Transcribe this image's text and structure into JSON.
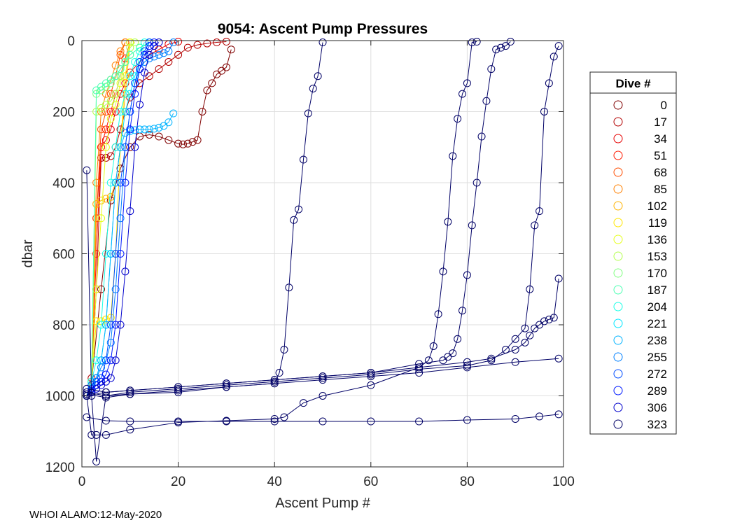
{
  "chart_data": {
    "type": "scatter",
    "title": "9054: Ascent Pump Pressures",
    "xlabel": "Ascent Pump #",
    "ylabel": "dbar",
    "xlim": [
      0,
      100
    ],
    "ylim": [
      1200,
      0
    ],
    "y_reversed": true,
    "xticks": [
      0,
      20,
      40,
      60,
      80,
      100
    ],
    "yticks": [
      0,
      200,
      400,
      600,
      800,
      1000,
      1200
    ],
    "grid": true,
    "marker": "open-circle",
    "legend": {
      "title": "Dive #",
      "placement": "right-outside",
      "entries": [
        {
          "label": "0",
          "color": "#800000"
        },
        {
          "label": "17",
          "color": "#B30000"
        },
        {
          "label": "34",
          "color": "#E60000"
        },
        {
          "label": "51",
          "color": "#FF1A00"
        },
        {
          "label": "68",
          "color": "#FF4D00"
        },
        {
          "label": "85",
          "color": "#FF8000"
        },
        {
          "label": "102",
          "color": "#FFB300"
        },
        {
          "label": "119",
          "color": "#FFE600"
        },
        {
          "label": "136",
          "color": "#E6FF1A"
        },
        {
          "label": "153",
          "color": "#B3FF4D"
        },
        {
          "label": "170",
          "color": "#80FF80"
        },
        {
          "label": "187",
          "color": "#4DFFB3"
        },
        {
          "label": "204",
          "color": "#1AFFE6"
        },
        {
          "label": "221",
          "color": "#00E6FF"
        },
        {
          "label": "238",
          "color": "#00B3FF"
        },
        {
          "label": "255",
          "color": "#0080FF"
        },
        {
          "label": "272",
          "color": "#004DFF"
        },
        {
          "label": "289",
          "color": "#001AFF"
        },
        {
          "label": "306",
          "color": "#0000CC"
        },
        {
          "label": "323",
          "color": "#000066"
        }
      ]
    },
    "series": [
      {
        "name": "0",
        "color": "#800000",
        "x": [
          1,
          2,
          4,
          6,
          8,
          10,
          12,
          14,
          16,
          18,
          20,
          21,
          22,
          23,
          24,
          25,
          26,
          27,
          28,
          29,
          30,
          31
        ],
        "y": [
          1000,
          960,
          700,
          450,
          360,
          300,
          270,
          265,
          270,
          280,
          290,
          292,
          290,
          285,
          280,
          200,
          140,
          120,
          95,
          85,
          75,
          25
        ]
      },
      {
        "name": "17",
        "color": "#B30000",
        "x": [
          1,
          2,
          3,
          4,
          5,
          6,
          7,
          8,
          9,
          10,
          12,
          14,
          16,
          18,
          20,
          22,
          24,
          26,
          28,
          30
        ],
        "y": [
          1000,
          950,
          700,
          330,
          330,
          325,
          300,
          250,
          200,
          160,
          120,
          100,
          80,
          60,
          40,
          20,
          12,
          8,
          5,
          3
        ]
      },
      {
        "name": "34",
        "color": "#E60000",
        "x": [
          1,
          2,
          3,
          4,
          5,
          6,
          7,
          8,
          9,
          10,
          12,
          14,
          16,
          18,
          20
        ],
        "y": [
          1000,
          960,
          500,
          300,
          280,
          250,
          200,
          150,
          120,
          90,
          60,
          40,
          25,
          10,
          3
        ]
      },
      {
        "name": "51",
        "color": "#FF1A00",
        "x": [
          1,
          2,
          3,
          4,
          5,
          6,
          7,
          8,
          9,
          10
        ],
        "y": [
          1000,
          960,
          600,
          300,
          250,
          200,
          150,
          100,
          50,
          5
        ]
      },
      {
        "name": "68",
        "color": "#FF4D00",
        "x": [
          1,
          2,
          3,
          4,
          5,
          6,
          7,
          8,
          9
        ],
        "y": [
          1000,
          960,
          500,
          250,
          200,
          150,
          100,
          40,
          5
        ]
      },
      {
        "name": "85",
        "color": "#FF8000",
        "x": [
          1,
          2,
          3,
          4,
          5,
          6,
          7,
          8,
          9
        ],
        "y": [
          1000,
          960,
          400,
          200,
          150,
          110,
          70,
          30,
          5
        ]
      },
      {
        "name": "102",
        "color": "#FFB300",
        "x": [
          1,
          2,
          3,
          4,
          5,
          6,
          7,
          8,
          9,
          10
        ],
        "y": [
          1000,
          960,
          460,
          450,
          445,
          440,
          400,
          300,
          150,
          5
        ]
      },
      {
        "name": "119",
        "color": "#FFE600",
        "x": [
          1,
          2,
          3,
          4,
          5,
          6,
          7,
          8,
          9,
          10
        ],
        "y": [
          1000,
          960,
          790,
          790,
          785,
          780,
          600,
          300,
          100,
          5
        ]
      },
      {
        "name": "136",
        "color": "#E6FF1A",
        "x": [
          1,
          2,
          3,
          4,
          5,
          6,
          7,
          8,
          9,
          10
        ],
        "y": [
          1000,
          960,
          700,
          500,
          300,
          220,
          180,
          120,
          60,
          5
        ]
      },
      {
        "name": "153",
        "color": "#B3FF4D",
        "x": [
          1,
          2,
          3,
          4,
          5,
          6,
          7,
          8,
          9,
          10,
          11
        ],
        "y": [
          1000,
          960,
          200,
          190,
          180,
          170,
          150,
          100,
          60,
          20,
          5
        ]
      },
      {
        "name": "170",
        "color": "#80FF80",
        "x": [
          1,
          2,
          3,
          4,
          5,
          6,
          7,
          8,
          9,
          10,
          12,
          14
        ],
        "y": [
          1000,
          960,
          150,
          140,
          130,
          120,
          100,
          80,
          60,
          40,
          20,
          5
        ]
      },
      {
        "name": "187",
        "color": "#4DFFB3",
        "x": [
          1,
          2,
          3,
          4,
          5,
          6,
          7,
          8,
          9,
          10,
          12,
          14
        ],
        "y": [
          1000,
          960,
          140,
          130,
          120,
          110,
          100,
          80,
          60,
          40,
          20,
          5
        ]
      },
      {
        "name": "204",
        "color": "#1AFFE6",
        "x": [
          1,
          2,
          3,
          4,
          5,
          6,
          7,
          8,
          9,
          10,
          11,
          12,
          13
        ],
        "y": [
          1000,
          960,
          900,
          800,
          600,
          400,
          300,
          200,
          150,
          100,
          60,
          30,
          5
        ]
      },
      {
        "name": "221",
        "color": "#00E6FF",
        "x": [
          1,
          2,
          3,
          4,
          5,
          6,
          7,
          8,
          9,
          10,
          11,
          12,
          13,
          14
        ],
        "y": [
          1000,
          970,
          950,
          900,
          800,
          600,
          400,
          300,
          200,
          150,
          100,
          60,
          30,
          5
        ]
      },
      {
        "name": "238",
        "color": "#00B3FF",
        "x": [
          1,
          2,
          3,
          4,
          5,
          6,
          7,
          8,
          9,
          10,
          11,
          12,
          13,
          14,
          15,
          16,
          17,
          18,
          19
        ],
        "y": [
          1000,
          970,
          950,
          900,
          800,
          600,
          400,
          300,
          260,
          255,
          252,
          250,
          250,
          250,
          248,
          245,
          240,
          230,
          205
        ]
      },
      {
        "name": "255",
        "color": "#0080FF",
        "x": [
          1,
          2,
          3,
          4,
          5,
          6,
          7,
          8,
          9,
          10,
          11,
          12,
          13,
          14,
          15,
          16,
          17,
          18,
          19
        ],
        "y": [
          1000,
          970,
          950,
          920,
          900,
          850,
          700,
          500,
          300,
          200,
          120,
          80,
          60,
          50,
          45,
          40,
          35,
          30,
          5
        ]
      },
      {
        "name": "272",
        "color": "#004DFF",
        "x": [
          1,
          2,
          3,
          4,
          5,
          6,
          7,
          8,
          9,
          10,
          11,
          12,
          13,
          14
        ],
        "y": [
          1000,
          980,
          960,
          950,
          900,
          800,
          600,
          400,
          300,
          200,
          120,
          60,
          30,
          5
        ]
      },
      {
        "name": "289",
        "color": "#001AFF",
        "x": [
          1,
          2,
          3,
          4,
          5,
          6,
          7,
          8,
          9,
          10,
          11,
          12,
          13,
          14,
          15
        ],
        "y": [
          1000,
          985,
          970,
          960,
          940,
          900,
          800,
          600,
          400,
          250,
          150,
          80,
          40,
          15,
          5
        ]
      },
      {
        "name": "306",
        "color": "#0000CC",
        "x": [
          1,
          2,
          3,
          4,
          5,
          6,
          7,
          8,
          9,
          10,
          11,
          12,
          13,
          14,
          15,
          16
        ],
        "y": [
          1000,
          990,
          980,
          970,
          960,
          950,
          900,
          800,
          650,
          480,
          300,
          180,
          90,
          40,
          15,
          5
        ]
      },
      {
        "name": "323",
        "color": "#000066",
        "x": [
          1,
          2,
          3,
          5,
          10,
          20,
          30,
          40,
          41,
          42,
          43,
          44,
          45,
          46,
          47,
          48,
          49,
          50
        ],
        "y": [
          365,
          1000,
          1185,
          1000,
          995,
          985,
          975,
          965,
          935,
          870,
          695,
          505,
          475,
          335,
          205,
          135,
          100,
          5
        ]
      },
      {
        "name": "323",
        "color": "#000066",
        "x": [
          1,
          2,
          3,
          5,
          10,
          20,
          30,
          40,
          42,
          46,
          50,
          60,
          70,
          72,
          73,
          74,
          75,
          76,
          77,
          78,
          79,
          80,
          81,
          82
        ],
        "y": [
          1000,
          1110,
          1110,
          1110,
          1095,
          1075,
          1070,
          1065,
          1060,
          1020,
          1000,
          970,
          920,
          900,
          860,
          770,
          650,
          510,
          325,
          220,
          150,
          120,
          5,
          3
        ]
      },
      {
        "name": "323",
        "color": "#000066",
        "x": [
          1,
          5,
          10,
          20,
          30,
          40,
          50,
          60,
          70,
          75,
          76,
          77,
          78,
          79,
          80,
          81,
          82,
          83,
          84,
          85,
          86,
          87,
          88,
          89
        ],
        "y": [
          980,
          990,
          985,
          975,
          965,
          955,
          945,
          935,
          910,
          900,
          890,
          880,
          840,
          760,
          660,
          520,
          400,
          270,
          170,
          80,
          25,
          20,
          15,
          3
        ]
      },
      {
        "name": "323",
        "color": "#000066",
        "x": [
          1,
          5,
          10,
          20,
          30,
          40,
          50,
          60,
          70,
          80,
          85,
          88,
          90,
          92,
          93,
          94,
          95,
          96,
          97,
          98,
          99
        ],
        "y": [
          990,
          1000,
          990,
          980,
          970,
          960,
          950,
          940,
          925,
          915,
          900,
          870,
          840,
          810,
          700,
          520,
          480,
          200,
          120,
          45,
          15
        ]
      },
      {
        "name": "323",
        "color": "#000066",
        "x": [
          1,
          5,
          10,
          20,
          30,
          40,
          50,
          60,
          70,
          80,
          85,
          90,
          92,
          93,
          94,
          95,
          96,
          97,
          98,
          99
        ],
        "y": [
          1000,
          990,
          985,
          975,
          965,
          955,
          945,
          935,
          920,
          905,
          895,
          870,
          850,
          830,
          810,
          800,
          790,
          785,
          780,
          670
        ]
      },
      {
        "name": "323",
        "color": "#000066",
        "x": [
          1,
          5,
          10,
          20,
          30,
          40,
          50,
          60,
          70,
          80,
          90,
          95,
          99
        ],
        "y": [
          1060,
          1070,
          1072,
          1072,
          1072,
          1072,
          1072,
          1072,
          1072,
          1068,
          1065,
          1058,
          1052
        ]
      },
      {
        "name": "323",
        "color": "#000066",
        "x": [
          1,
          5,
          10,
          20,
          30,
          40,
          50,
          60,
          70,
          80,
          90,
          99
        ],
        "y": [
          995,
          1005,
          995,
          990,
          975,
          965,
          955,
          945,
          935,
          920,
          905,
          895
        ]
      }
    ]
  },
  "footer": {
    "note": "WHOI ALAMO:12-May-2020"
  }
}
